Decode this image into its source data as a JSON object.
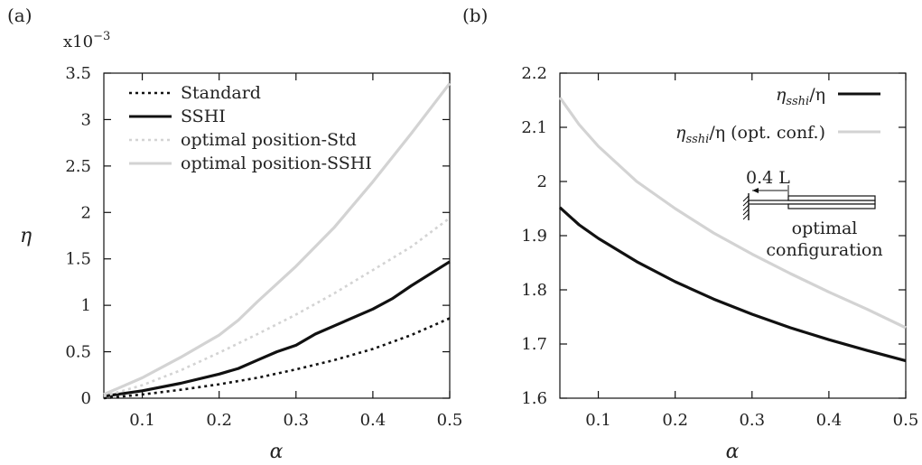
{
  "chart_data": [
    {
      "panel_label": "(a)",
      "type": "line",
      "xlabel": "α",
      "ylabel": "η",
      "y_multiplier": "x10",
      "y_multiplier_exp": "−3",
      "xlim": [
        0.05,
        0.5
      ],
      "ylim": [
        0,
        3.5
      ],
      "xticks": [
        0.1,
        0.2,
        0.3,
        0.4,
        0.5
      ],
      "xtick_labels": [
        "0.1",
        "0.2",
        "0.3",
        "0.4",
        "0.5"
      ],
      "yticks": [
        0,
        0.5,
        1,
        1.5,
        2,
        2.5,
        3,
        3.5
      ],
      "ytick_labels": [
        "0",
        "0.5",
        "1",
        "1.5",
        "2",
        "2.5",
        "3",
        "3.5"
      ],
      "legend_position": "top-left",
      "series": [
        {
          "name": "Standard",
          "color": "#111111",
          "dash": "dotted",
          "x": [
            0.05,
            0.1,
            0.15,
            0.2,
            0.25,
            0.3,
            0.35,
            0.4,
            0.45,
            0.5
          ],
          "y": [
            0.0,
            0.04,
            0.09,
            0.15,
            0.22,
            0.31,
            0.41,
            0.53,
            0.68,
            0.86
          ]
        },
        {
          "name": "SSHI",
          "color": "#111111",
          "dash": "solid",
          "x": [
            0.05,
            0.1,
            0.15,
            0.2,
            0.225,
            0.25,
            0.275,
            0.3,
            0.325,
            0.35,
            0.4,
            0.425,
            0.45,
            0.5
          ],
          "y": [
            0.02,
            0.08,
            0.16,
            0.26,
            0.32,
            0.41,
            0.5,
            0.57,
            0.69,
            0.78,
            0.96,
            1.07,
            1.21,
            1.47
          ]
        },
        {
          "name": "optimal position-Std",
          "color": "#d3d3d3",
          "dash": "dotted",
          "x": [
            0.05,
            0.1,
            0.15,
            0.2,
            0.25,
            0.3,
            0.35,
            0.4,
            0.45,
            0.5
          ],
          "y": [
            0.02,
            0.14,
            0.3,
            0.49,
            0.69,
            0.9,
            1.13,
            1.38,
            1.63,
            1.94
          ]
        },
        {
          "name": "optimal position-SSHI",
          "color": "#d3d3d3",
          "dash": "solid",
          "x": [
            0.05,
            0.1,
            0.15,
            0.2,
            0.225,
            0.25,
            0.3,
            0.35,
            0.4,
            0.45,
            0.5
          ],
          "y": [
            0.04,
            0.22,
            0.44,
            0.68,
            0.84,
            1.04,
            1.42,
            1.84,
            2.33,
            2.85,
            3.39
          ]
        }
      ]
    },
    {
      "panel_label": "(b)",
      "type": "line",
      "xlabel": "α",
      "ylabel": "",
      "xlim": [
        0.05,
        0.5
      ],
      "ylim": [
        1.6,
        2.2
      ],
      "xticks": [
        0.1,
        0.2,
        0.3,
        0.4,
        0.5
      ],
      "xtick_labels": [
        "0.1",
        "0.2",
        "0.3",
        "0.4",
        "0.5"
      ],
      "yticks": [
        1.6,
        1.7,
        1.8,
        1.9,
        2,
        2.1,
        2.2
      ],
      "ytick_labels": [
        "1.6",
        "1.7",
        "1.8",
        "1.9",
        "2",
        "2.1",
        "2.2"
      ],
      "legend_position": "top-right",
      "series": [
        {
          "name": "ηsshi/η",
          "color": "#111111",
          "dash": "solid",
          "x": [
            0.05,
            0.075,
            0.1,
            0.15,
            0.2,
            0.25,
            0.3,
            0.35,
            0.4,
            0.45,
            0.5
          ],
          "y": [
            1.952,
            1.92,
            1.895,
            1.852,
            1.815,
            1.783,
            1.755,
            1.73,
            1.708,
            1.688,
            1.669
          ]
        },
        {
          "name": "ηsshi/η (opt. conf.)",
          "color": "#d3d3d3",
          "dash": "solid",
          "x": [
            0.05,
            0.075,
            0.1,
            0.15,
            0.2,
            0.25,
            0.3,
            0.35,
            0.4,
            0.45,
            0.5
          ],
          "y": [
            2.155,
            2.105,
            2.065,
            2.0,
            1.95,
            1.905,
            1.866,
            1.83,
            1.796,
            1.764,
            1.73
          ]
        }
      ],
      "legend_text": {
        "s1_main": "η",
        "s1_sub": "sshi",
        "s1_tail": "/η",
        "s2_main": "η",
        "s2_sub": "sshi",
        "s2_tail": "/η (opt. conf.)"
      },
      "inset": {
        "dimension_label": "0.4 L",
        "caption_line1": "optimal",
        "caption_line2": "configuration"
      }
    }
  ]
}
